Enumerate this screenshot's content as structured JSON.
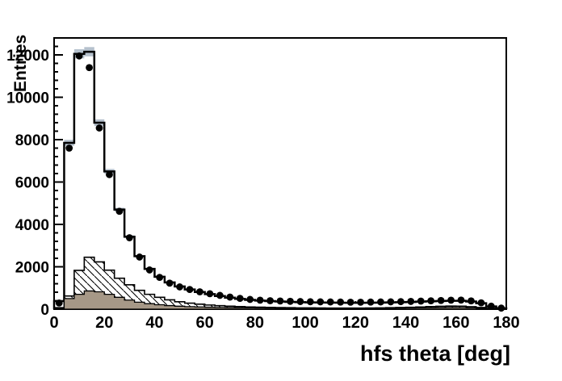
{
  "figure": {
    "background_color": "#ffffff",
    "frame_border_color": "#000000"
  },
  "chart_data": {
    "type": "bar",
    "subtype": "step-histogram-with-markers",
    "title": "",
    "xlabel": "hfs theta [deg]",
    "ylabel": "Entries",
    "xlim": [
      0,
      180
    ],
    "ylim": [
      0,
      12800
    ],
    "x_ticks": [
      0,
      20,
      40,
      60,
      80,
      100,
      120,
      140,
      160,
      180
    ],
    "y_ticks": [
      0,
      2000,
      4000,
      6000,
      8000,
      10000,
      12000
    ],
    "x_minor_step": 4,
    "y_minor_step": 400,
    "grid": false,
    "legend_position": "none",
    "bin_start": 0,
    "bin_width": 4,
    "series": [
      {
        "name": "mc-total-outline",
        "style": "step-outline",
        "color": "#000000",
        "fill": "#ffffff",
        "values": [
          380,
          7850,
          12050,
          12150,
          8800,
          6500,
          4700,
          3420,
          2500,
          1900,
          1530,
          1260,
          1070,
          930,
          810,
          710,
          620,
          545,
          485,
          440,
          405,
          380,
          360,
          345,
          330,
          320,
          315,
          310,
          305,
          300,
          300,
          305,
          310,
          320,
          330,
          340,
          355,
          370,
          385,
          395,
          395,
          360,
          280,
          130,
          45
        ]
      },
      {
        "name": "mc-uncertainty-band",
        "style": "band",
        "color": "#b5c1cd",
        "band_fraction": 0.018,
        "band_min": 45,
        "values": [
          380,
          7850,
          12050,
          12150,
          8800,
          6500,
          4700,
          3420,
          2500,
          1900,
          1530,
          1260,
          1070,
          930,
          810,
          710,
          620,
          545,
          485,
          440,
          405,
          380,
          360,
          345,
          330,
          320,
          315,
          310,
          305,
          300,
          300,
          305,
          310,
          320,
          330,
          340,
          355,
          370,
          385,
          395,
          395,
          360,
          280,
          130,
          45
        ]
      },
      {
        "name": "background-hatched",
        "style": "step-hatched",
        "color": "#000000",
        "fill": "#ffffff",
        "values": [
          70,
          620,
          1830,
          2450,
          2230,
          1840,
          1460,
          1150,
          890,
          700,
          560,
          440,
          350,
          285,
          235,
          195,
          165,
          140,
          120,
          105,
          92,
          82,
          75,
          68,
          62,
          58,
          55,
          52,
          50,
          50,
          52,
          55,
          60,
          68,
          78,
          90,
          105,
          120,
          135,
          145,
          140,
          115,
          80,
          40,
          15
        ]
      },
      {
        "name": "background-solid",
        "style": "step-filled",
        "color": "#a69887",
        "values": [
          40,
          500,
          700,
          860,
          820,
          700,
          560,
          430,
          330,
          260,
          210,
          170,
          140,
          120,
          105,
          92,
          82,
          74,
          68,
          62,
          58,
          54,
          50,
          48,
          46,
          44,
          43,
          42,
          41,
          40,
          41,
          42,
          44,
          47,
          51,
          56,
          62,
          68,
          74,
          78,
          75,
          62,
          45,
          22,
          8
        ]
      },
      {
        "name": "data-points",
        "style": "markers",
        "color": "#000000",
        "marker": "filled-circle",
        "marker_radius": 4.4,
        "values": [
          290,
          7600,
          11950,
          11400,
          8550,
          6350,
          4620,
          3370,
          2460,
          1850,
          1500,
          1230,
          1050,
          930,
          820,
          730,
          650,
          570,
          510,
          460,
          425,
          400,
          385,
          370,
          360,
          350,
          345,
          340,
          335,
          330,
          330,
          335,
          340,
          345,
          355,
          365,
          380,
          395,
          410,
          425,
          430,
          390,
          300,
          140,
          50
        ]
      }
    ]
  }
}
